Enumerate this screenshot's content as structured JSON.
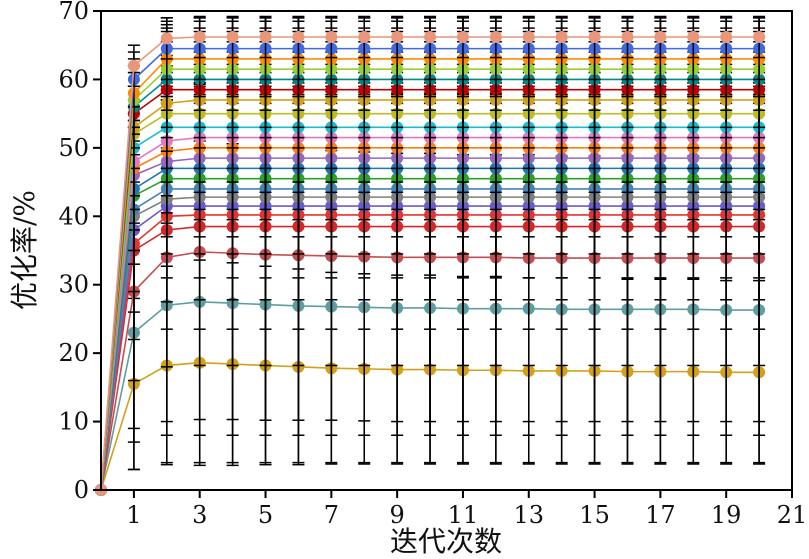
{
  "chart_data": {
    "type": "line",
    "xlabel": "迭代次数",
    "ylabel": "优化率/%",
    "xlim": [
      0,
      21
    ],
    "ylim": [
      0,
      70
    ],
    "x_ticks": [
      1,
      3,
      5,
      7,
      9,
      11,
      13,
      15,
      17,
      19,
      21
    ],
    "y_ticks": [
      0,
      10,
      20,
      30,
      40,
      50,
      60,
      70
    ],
    "grid": false,
    "legend": "none",
    "error_bars": true,
    "x": [
      0,
      1,
      2,
      3,
      4,
      5,
      6,
      7,
      8,
      9,
      10,
      11,
      12,
      13,
      14,
      15,
      16,
      17,
      18,
      19,
      20
    ],
    "series": [
      {
        "color": "#d4a017",
        "values": [
          0,
          15.5,
          18.2,
          18.6,
          18.4,
          18.2,
          18.0,
          17.8,
          17.7,
          17.6,
          17.6,
          17.5,
          17.5,
          17.4,
          17.4,
          17.4,
          17.3,
          17.3,
          17.3,
          17.2,
          17.2
        ],
        "error": [
          0,
          12.5,
          14.5,
          15.0,
          14.8,
          14.5,
          14.3,
          14.0,
          13.9,
          13.8,
          13.8,
          13.7,
          13.7,
          13.6,
          13.6,
          13.6,
          13.5,
          13.5,
          13.5,
          13.4,
          13.4
        ]
      },
      {
        "color": "#5f9ea0",
        "values": [
          0,
          23.0,
          27.0,
          27.5,
          27.3,
          27.1,
          26.9,
          26.8,
          26.7,
          26.6,
          26.6,
          26.5,
          26.5,
          26.5,
          26.4,
          26.4,
          26.4,
          26.4,
          26.4,
          26.3,
          26.3
        ],
        "error": [
          0,
          20.0,
          23.0,
          23.5,
          23.3,
          23.1,
          22.9,
          22.8,
          22.7,
          22.6,
          22.6,
          22.5,
          22.5,
          22.5,
          22.4,
          22.4,
          22.4,
          22.4,
          22.4,
          22.3,
          22.3
        ]
      },
      {
        "color": "#c44e52",
        "values": [
          0,
          29.0,
          34.0,
          34.8,
          34.6,
          34.4,
          34.3,
          34.2,
          34.1,
          34.0,
          34.0,
          34.0,
          34.0,
          33.9,
          33.9,
          33.9,
          33.9,
          33.9,
          33.9,
          33.9,
          33.9
        ],
        "error": [
          0,
          22.0,
          24.0,
          24.5,
          24.3,
          24.2,
          24.1,
          24.0,
          24.0,
          24.0,
          24.0,
          24.0,
          24.0,
          23.9,
          23.9,
          23.9,
          23.9,
          23.9,
          23.9,
          23.9,
          23.9
        ]
      },
      {
        "color": "#d62728",
        "values": [
          0,
          35.0,
          38.0,
          38.5,
          38.5,
          38.5,
          38.5,
          38.5,
          38.5,
          38.5,
          38.5,
          38.5,
          38.5,
          38.5,
          38.5,
          38.5,
          38.5,
          38.5,
          38.5,
          38.5,
          38.5
        ],
        "error": [
          0,
          26.0,
          30.0,
          30.5,
          30.5,
          30.5,
          30.5,
          30.5,
          30.5,
          30.5,
          30.5,
          30.5,
          30.5,
          30.5,
          30.5,
          30.5,
          30.5,
          30.5,
          30.5,
          30.5,
          30.5
        ]
      },
      {
        "color": "#e3342f",
        "values": [
          0,
          36.0,
          40.0,
          40.2,
          40.2,
          40.2,
          40.2,
          40.2,
          40.2,
          40.2,
          40.2,
          40.2,
          40.2,
          40.2,
          40.2,
          40.2,
          40.2,
          40.2,
          40.2,
          40.2,
          40.2
        ],
        "error": [
          0,
          20.0,
          22.0,
          22.0,
          22.0,
          22.0,
          22.0,
          22.0,
          22.0,
          22.0,
          22.0,
          22.0,
          22.0,
          22.0,
          22.0,
          22.0,
          22.0,
          22.0,
          22.0,
          22.0,
          22.0
        ]
      },
      {
        "color": "#6a5acd",
        "values": [
          0,
          38.0,
          41.5,
          41.5,
          41.5,
          41.5,
          41.5,
          41.5,
          41.5,
          41.5,
          41.5,
          41.5,
          41.5,
          41.5,
          41.5,
          41.5,
          41.5,
          41.5,
          41.5,
          41.5,
          41.5
        ],
        "error": [
          0,
          16.0,
          18.0,
          18.0,
          18.0,
          18.0,
          18.0,
          18.0,
          18.0,
          18.0,
          18.0,
          18.0,
          18.0,
          18.0,
          18.0,
          18.0,
          18.0,
          18.0,
          18.0,
          18.0,
          18.0
        ]
      },
      {
        "color": "#7f7f7f",
        "values": [
          0,
          40.0,
          42.5,
          42.8,
          42.8,
          42.8,
          42.8,
          42.8,
          42.8,
          42.8,
          42.8,
          42.8,
          42.8,
          42.8,
          42.8,
          42.8,
          42.8,
          42.8,
          42.8,
          42.8,
          42.8
        ],
        "error": [
          0,
          14.0,
          15.0,
          15.0,
          15.0,
          15.0,
          15.0,
          15.0,
          15.0,
          15.0,
          15.0,
          15.0,
          15.0,
          15.0,
          15.0,
          15.0,
          15.0,
          15.0,
          15.0,
          15.0,
          15.0
        ]
      },
      {
        "color": "#4682b4",
        "values": [
          0,
          41.0,
          44.0,
          44.0,
          44.0,
          44.0,
          44.0,
          44.0,
          44.0,
          44.0,
          44.0,
          44.0,
          44.0,
          44.0,
          44.0,
          44.0,
          44.0,
          44.0,
          44.0,
          44.0,
          44.0
        ],
        "error": [
          0,
          12.0,
          13.0,
          13.0,
          13.0,
          13.0,
          13.0,
          13.0,
          13.0,
          13.0,
          13.0,
          13.0,
          13.0,
          13.0,
          13.0,
          13.0,
          13.0,
          13.0,
          13.0,
          13.0,
          13.0
        ]
      },
      {
        "color": "#2ca02c",
        "values": [
          0,
          43.0,
          45.5,
          45.5,
          45.5,
          45.5,
          45.5,
          45.5,
          45.5,
          45.5,
          45.5,
          45.5,
          45.5,
          45.5,
          45.5,
          45.5,
          45.5,
          45.5,
          45.5,
          45.5,
          45.5
        ],
        "error": [
          0,
          10.0,
          11.0,
          11.0,
          11.0,
          11.0,
          11.0,
          11.0,
          11.0,
          11.0,
          11.0,
          11.0,
          11.0,
          11.0,
          11.0,
          11.0,
          11.0,
          11.0,
          11.0,
          11.0,
          11.0
        ]
      },
      {
        "color": "#1f77b4",
        "values": [
          0,
          44.0,
          47.0,
          47.0,
          47.0,
          47.0,
          47.0,
          47.0,
          47.0,
          47.0,
          47.0,
          47.0,
          47.0,
          47.0,
          47.0,
          47.0,
          47.0,
          47.0,
          47.0,
          47.0,
          47.0
        ],
        "error": [
          0,
          9.0,
          10.0,
          10.0,
          10.0,
          10.0,
          10.0,
          10.0,
          10.0,
          10.0,
          10.0,
          10.0,
          10.0,
          10.0,
          10.0,
          10.0,
          10.0,
          10.0,
          10.0,
          10.0,
          10.0
        ]
      },
      {
        "color": "#9467bd",
        "values": [
          0,
          46.0,
          48.0,
          48.5,
          48.5,
          48.5,
          48.5,
          48.5,
          48.5,
          48.5,
          48.5,
          48.5,
          48.5,
          48.5,
          48.5,
          48.5,
          48.5,
          48.5,
          48.5,
          48.5,
          48.5
        ],
        "error": [
          0,
          8.0,
          9.0,
          9.0,
          9.0,
          9.0,
          9.0,
          9.0,
          9.0,
          9.0,
          9.0,
          9.0,
          9.0,
          9.0,
          9.0,
          9.0,
          9.0,
          9.0,
          9.0,
          9.0,
          9.0
        ]
      },
      {
        "color": "#ff7f0e",
        "values": [
          0,
          47.0,
          49.5,
          50.0,
          50.0,
          50.0,
          50.0,
          50.0,
          50.0,
          50.0,
          50.0,
          50.0,
          50.0,
          50.0,
          50.0,
          50.0,
          50.0,
          50.0,
          50.0,
          50.0,
          50.0
        ],
        "error": [
          0,
          8.0,
          9.0,
          9.0,
          9.0,
          9.0,
          9.0,
          9.0,
          9.0,
          9.0,
          9.0,
          9.0,
          9.0,
          9.0,
          9.0,
          9.0,
          9.0,
          9.0,
          9.0,
          9.0,
          9.0
        ]
      },
      {
        "color": "#e377c2",
        "values": [
          0,
          48.0,
          51.0,
          51.5,
          51.5,
          51.5,
          51.5,
          51.5,
          51.5,
          51.5,
          51.5,
          51.5,
          51.5,
          51.5,
          51.5,
          51.5,
          51.5,
          51.5,
          51.5,
          51.5,
          51.5
        ],
        "error": [
          0,
          7.0,
          8.0,
          8.0,
          8.0,
          8.0,
          8.0,
          8.0,
          8.0,
          8.0,
          8.0,
          8.0,
          8.0,
          8.0,
          8.0,
          8.0,
          8.0,
          8.0,
          8.0,
          8.0,
          8.0
        ]
      },
      {
        "color": "#17becf",
        "values": [
          0,
          50.0,
          53.0,
          53.0,
          53.0,
          53.0,
          53.0,
          53.0,
          53.0,
          53.0,
          53.0,
          53.0,
          53.0,
          53.0,
          53.0,
          53.0,
          53.0,
          53.0,
          53.0,
          53.0,
          53.0
        ],
        "error": [
          0,
          7.0,
          8.0,
          8.0,
          8.0,
          8.0,
          8.0,
          8.0,
          8.0,
          8.0,
          8.0,
          8.0,
          8.0,
          8.0,
          8.0,
          8.0,
          8.0,
          8.0,
          8.0,
          8.0,
          8.0
        ]
      },
      {
        "color": "#bcbd22",
        "values": [
          0,
          52.0,
          55.0,
          55.0,
          55.0,
          55.0,
          55.0,
          55.0,
          55.0,
          55.0,
          55.0,
          55.0,
          55.0,
          55.0,
          55.0,
          55.0,
          55.0,
          55.0,
          55.0,
          55.0,
          55.0
        ],
        "error": [
          0,
          7.0,
          8.0,
          8.0,
          8.0,
          8.0,
          8.0,
          8.0,
          8.0,
          8.0,
          8.0,
          8.0,
          8.0,
          8.0,
          8.0,
          8.0,
          8.0,
          8.0,
          8.0,
          8.0,
          8.0
        ]
      },
      {
        "color": "#d4a017",
        "values": [
          0,
          53.0,
          56.5,
          57.0,
          57.0,
          57.0,
          57.0,
          57.0,
          57.0,
          57.0,
          57.0,
          57.0,
          57.0,
          57.0,
          57.0,
          57.0,
          57.0,
          57.0,
          57.0,
          57.0,
          57.0
        ],
        "error": [
          0,
          6.0,
          7.0,
          7.0,
          7.0,
          7.0,
          7.0,
          7.0,
          7.0,
          7.0,
          7.0,
          7.0,
          7.0,
          7.0,
          7.0,
          7.0,
          7.0,
          7.0,
          7.0,
          7.0,
          7.0
        ]
      },
      {
        "color": "#c00000",
        "values": [
          0,
          55.0,
          58.5,
          58.5,
          58.5,
          58.5,
          58.5,
          58.5,
          58.5,
          58.5,
          58.5,
          58.5,
          58.5,
          58.5,
          58.5,
          58.5,
          58.5,
          58.5,
          58.5,
          58.5,
          58.5
        ],
        "error": [
          0,
          6.0,
          7.0,
          7.0,
          7.0,
          7.0,
          7.0,
          7.0,
          7.0,
          7.0,
          7.0,
          7.0,
          7.0,
          7.0,
          7.0,
          7.0,
          7.0,
          7.0,
          7.0,
          7.0,
          7.0
        ]
      },
      {
        "color": "#008b8b",
        "values": [
          0,
          56.0,
          60.0,
          60.0,
          60.0,
          60.0,
          60.0,
          60.0,
          60.0,
          60.0,
          60.0,
          60.0,
          60.0,
          60.0,
          60.0,
          60.0,
          60.0,
          60.0,
          60.0,
          60.0,
          60.0
        ],
        "error": [
          0,
          6.0,
          7.0,
          7.0,
          7.0,
          7.0,
          7.0,
          7.0,
          7.0,
          7.0,
          7.0,
          7.0,
          7.0,
          7.0,
          7.0,
          7.0,
          7.0,
          7.0,
          7.0,
          7.0,
          7.0
        ]
      },
      {
        "color": "#9acd32",
        "values": [
          0,
          57.0,
          61.5,
          61.5,
          61.5,
          61.5,
          61.5,
          61.5,
          61.5,
          61.5,
          61.5,
          61.5,
          61.5,
          61.5,
          61.5,
          61.5,
          61.5,
          61.5,
          61.5,
          61.5,
          61.5
        ],
        "error": [
          0,
          5.0,
          6.0,
          6.0,
          6.0,
          6.0,
          6.0,
          6.0,
          6.0,
          6.0,
          6.0,
          6.0,
          6.0,
          6.0,
          6.0,
          6.0,
          6.0,
          6.0,
          6.0,
          6.0,
          6.0
        ]
      },
      {
        "color": "#ff8c00",
        "values": [
          0,
          58.0,
          63.0,
          63.0,
          63.0,
          63.0,
          63.0,
          63.0,
          63.0,
          63.0,
          63.0,
          63.0,
          63.0,
          63.0,
          63.0,
          63.0,
          63.0,
          63.0,
          63.0,
          63.0,
          63.0
        ],
        "error": [
          0,
          5.0,
          5.5,
          5.5,
          5.5,
          5.5,
          5.5,
          5.5,
          5.5,
          5.5,
          5.5,
          5.5,
          5.5,
          5.5,
          5.5,
          5.5,
          5.5,
          5.5,
          5.5,
          5.5,
          5.5
        ]
      },
      {
        "color": "#4169e1",
        "values": [
          0,
          60.0,
          64.5,
          64.5,
          64.5,
          64.5,
          64.5,
          64.5,
          64.5,
          64.5,
          64.5,
          64.5,
          64.5,
          64.5,
          64.5,
          64.5,
          64.5,
          64.5,
          64.5,
          64.5,
          64.5
        ],
        "error": [
          0,
          4.0,
          4.5,
          4.5,
          4.5,
          4.5,
          4.5,
          4.5,
          4.5,
          4.5,
          4.5,
          4.5,
          4.5,
          4.5,
          4.5,
          4.5,
          4.5,
          4.5,
          4.5,
          4.5,
          4.5
        ]
      },
      {
        "color": "#e9967a",
        "values": [
          0,
          62.0,
          66.0,
          66.2,
          66.2,
          66.2,
          66.2,
          66.2,
          66.2,
          66.2,
          66.2,
          66.2,
          66.2,
          66.2,
          66.2,
          66.2,
          66.2,
          66.2,
          66.2,
          66.2,
          66.2
        ],
        "error": [
          0,
          3.0,
          3.0,
          3.0,
          3.0,
          3.0,
          3.0,
          3.0,
          3.0,
          3.0,
          3.0,
          3.0,
          3.0,
          3.0,
          3.0,
          3.0,
          3.0,
          3.0,
          3.0,
          3.0,
          3.0
        ]
      }
    ]
  }
}
